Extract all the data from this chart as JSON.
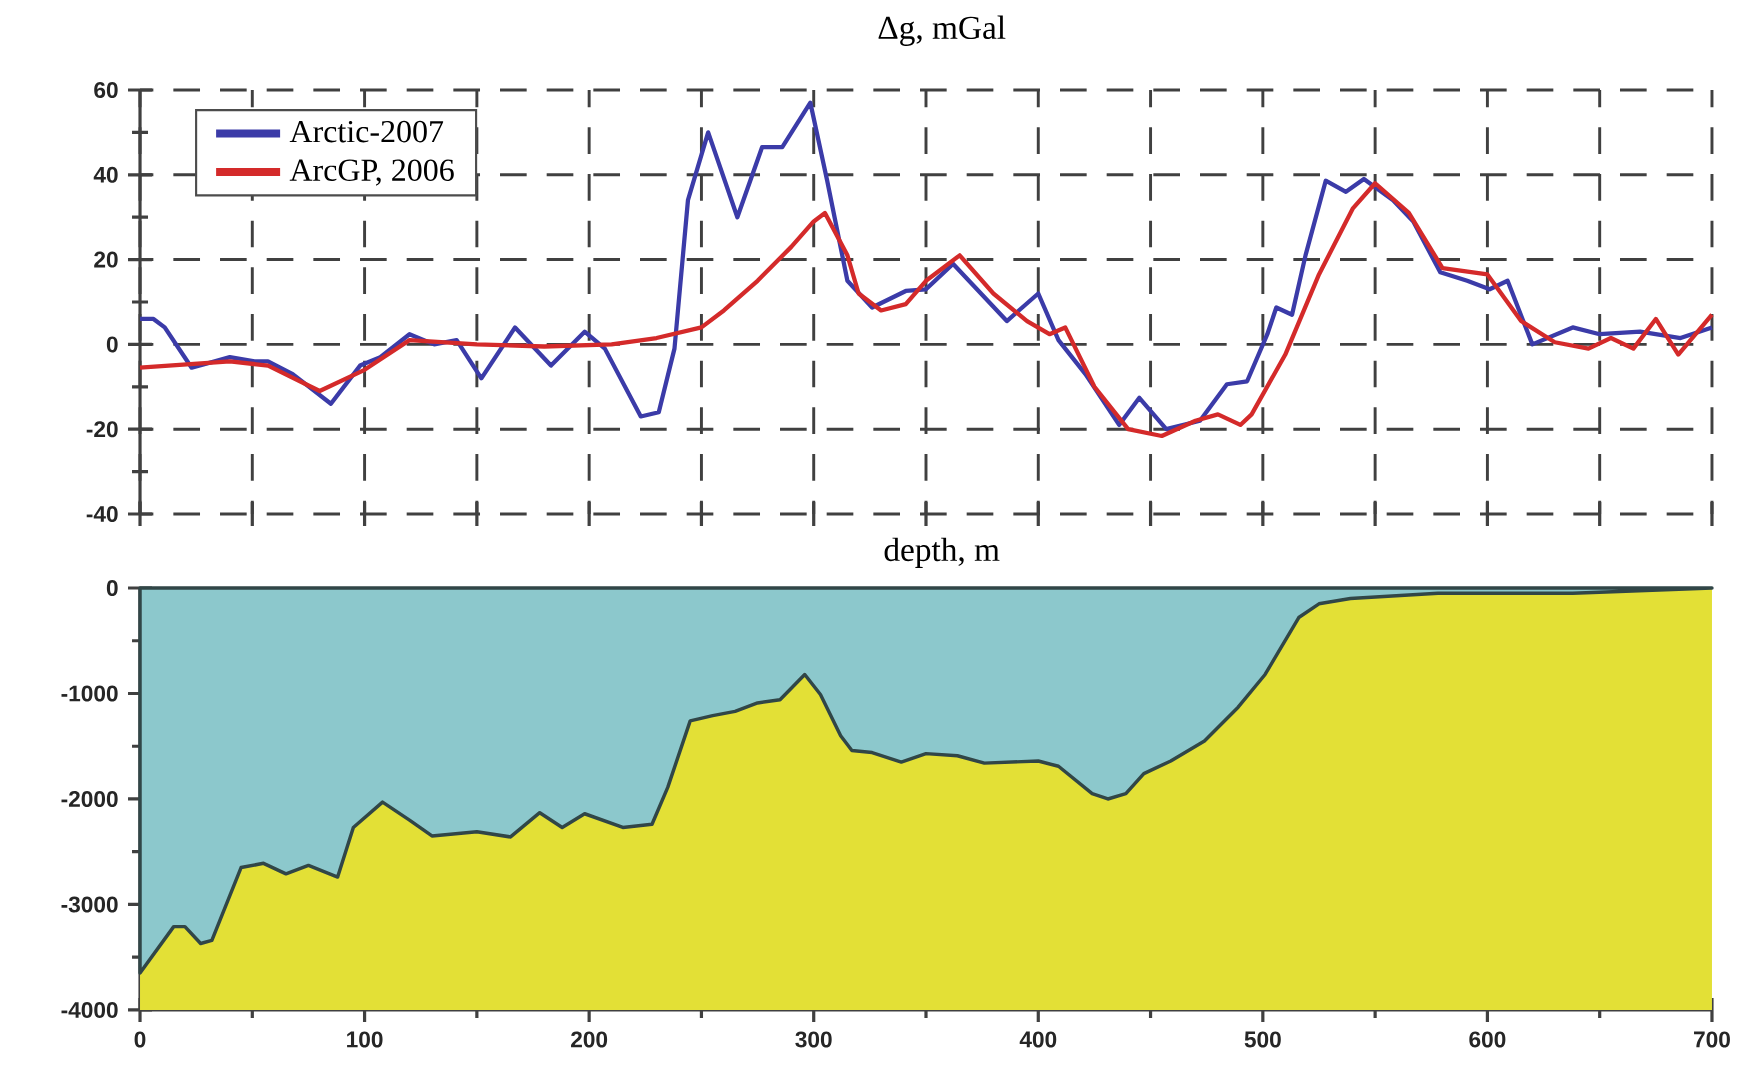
{
  "chart_data": [
    {
      "type": "line",
      "title": "Δg, mGal",
      "xlim": [
        0,
        700
      ],
      "xticks": [
        0,
        50,
        100,
        150,
        200,
        250,
        300,
        350,
        400,
        450,
        500,
        550,
        600,
        650,
        700
      ],
      "ylim": [
        -40,
        60
      ],
      "yticks": [
        -40,
        -20,
        0,
        20,
        40,
        60
      ],
      "tick_labels": "y",
      "grid": true,
      "legend": "top left",
      "line_style": "solid",
      "series": [
        {
          "name": "Arctic-2007",
          "color": "#3b3ba8",
          "x": [
            0,
            6,
            11,
            23,
            40,
            51,
            57,
            68,
            85,
            98,
            107,
            120,
            131,
            141,
            152,
            167,
            183,
            198,
            207,
            223,
            231,
            238,
            244,
            253,
            266,
            277,
            286,
            298.5,
            306,
            315,
            326,
            341,
            350,
            362,
            386,
            400,
            409,
            421,
            436,
            445,
            457,
            472,
            484,
            493,
            502,
            506,
            513,
            519,
            528,
            537,
            545,
            558,
            567,
            579,
            591,
            601,
            609,
            620,
            638,
            650,
            668,
            686,
            700
          ],
          "values": [
            6,
            6,
            4,
            -5.5,
            -3,
            -4,
            -4,
            -7,
            -14,
            -5,
            -3,
            2.4,
            0,
            1,
            -8,
            4,
            -5,
            3,
            -1,
            -17,
            -16,
            -1,
            34,
            50,
            30,
            46.5,
            46.5,
            57,
            38.6,
            15,
            8.7,
            12.6,
            13,
            19,
            5.5,
            12,
            1,
            -7,
            -19,
            -12.6,
            -20,
            -18,
            -9.4,
            -8.7,
            2.4,
            8.7,
            7,
            21,
            38.6,
            36,
            39,
            34,
            29,
            17,
            15,
            13,
            15,
            0,
            4,
            2.4,
            3,
            1.5,
            4
          ]
        },
        {
          "name": "ArcGP, 2006",
          "color": "#d42a2a",
          "x": [
            0,
            40,
            57,
            80,
            100,
            120,
            150,
            180,
            210,
            230,
            250,
            260,
            275,
            290,
            300,
            305,
            315,
            320,
            330,
            341,
            350,
            365,
            380,
            395,
            405,
            412,
            425,
            440,
            455,
            470,
            480,
            490,
            495,
            510,
            525,
            540,
            550,
            565,
            580,
            600,
            615,
            630,
            645,
            655,
            665,
            675,
            685,
            700
          ],
          "values": [
            -5.5,
            -4,
            -5,
            -11,
            -6,
            1,
            0,
            -0.5,
            0,
            1.5,
            4,
            8,
            15,
            23,
            29,
            31,
            21,
            12,
            8,
            9.5,
            15,
            21,
            12,
            5.5,
            2.4,
            4,
            -10,
            -20,
            -21.6,
            -18,
            -16.5,
            -19,
            -16.5,
            -2.4,
            16.5,
            32,
            38,
            31,
            18,
            16.5,
            5.5,
            0.5,
            -1,
            1.5,
            -1,
            6,
            -2.4,
            7
          ]
        }
      ]
    },
    {
      "type": "area",
      "title": "depth, m",
      "xlim": [
        0,
        700
      ],
      "xticks": [
        0,
        100,
        200,
        300,
        400,
        500,
        600,
        700
      ],
      "ylim": [
        -4000,
        0
      ],
      "yticks": [
        -4000,
        -3000,
        -2000,
        -1000,
        0
      ],
      "color": "#8cc8cc",
      "bands": [
        {
          "axis": "y",
          "from": -4000,
          "to": 0,
          "color": "#e3e036"
        }
      ],
      "x": [
        0,
        15,
        20,
        27,
        32,
        45,
        55,
        65,
        75,
        88,
        95,
        108,
        120,
        130,
        150,
        165,
        178,
        188,
        198,
        215,
        228,
        235,
        245,
        255,
        265,
        275,
        285,
        296,
        303,
        312,
        317,
        326,
        339,
        350,
        364,
        376,
        400,
        409,
        424,
        431,
        439,
        447,
        459,
        474,
        489,
        501,
        516,
        525,
        539,
        578,
        638,
        700
      ],
      "values": [
        -3650,
        -3210,
        -3210,
        -3370,
        -3340,
        -2650,
        -2610,
        -2710,
        -2630,
        -2740,
        -2270,
        -2030,
        -2200,
        -2350,
        -2310,
        -2360,
        -2130,
        -2270,
        -2140,
        -2270,
        -2240,
        -1890,
        -1260,
        -1210,
        -1170,
        -1090,
        -1060,
        -820,
        -1010,
        -1400,
        -1540,
        -1560,
        -1650,
        -1570,
        -1590,
        -1660,
        -1640,
        -1690,
        -1950,
        -2000,
        -1950,
        -1760,
        -1640,
        -1450,
        -1130,
        -820,
        -280,
        -150,
        -100,
        -50,
        -50,
        0
      ]
    }
  ]
}
